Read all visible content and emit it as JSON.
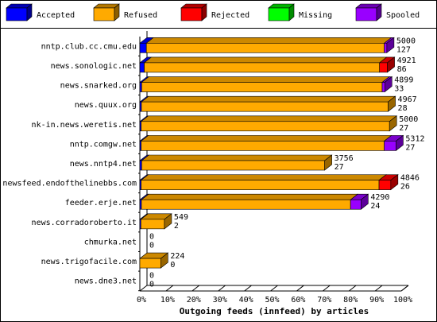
{
  "chart_data": {
    "type": "stacked-bar-3d",
    "title": "Outgoing feeds (innfeed) by articles",
    "categories": [
      "nntp.club.cc.cmu.edu",
      "news.sonologic.net",
      "news.snarked.org",
      "news.quux.org",
      "nk-in.news.weretis.net",
      "nntp.comgw.net",
      "news.nntp4.net",
      "newsfeed.endofthelinebbs.com",
      "feeder.erje.net",
      "news.corradoroberto.it",
      "chmurka.net",
      "news.trigofacile.com",
      "news.dne3.net"
    ],
    "series": [
      {
        "name": "Accepted",
        "color": "#0000ff",
        "values": [
          2.5,
          1.7,
          0.7,
          0.6,
          0.5,
          0.5,
          0.7,
          0.5,
          0.6,
          0.4,
          0,
          0,
          0
        ]
      },
      {
        "name": "Refused",
        "color": "#ffaa00",
        "values": [
          91,
          90,
          92,
          94.4,
          95,
          93,
          70,
          91,
          80,
          9,
          0,
          8,
          0
        ]
      },
      {
        "name": "Rejected",
        "color": "#ff0000",
        "values": [
          0,
          3,
          0,
          0,
          0,
          0,
          0,
          4.5,
          0,
          0,
          0,
          0,
          0
        ]
      },
      {
        "name": "Missing",
        "color": "#00ff00",
        "values": [
          0,
          0,
          0,
          0,
          0,
          0,
          0,
          0,
          0,
          0,
          0,
          0,
          0
        ]
      },
      {
        "name": "Spooled",
        "color": "#9900ff",
        "values": [
          1,
          0,
          1,
          0,
          0,
          4.5,
          0,
          0,
          4,
          0,
          0,
          0,
          0
        ]
      }
    ],
    "offered": [
      5000,
      4921,
      4899,
      4967,
      5000,
      5312,
      3756,
      4846,
      4290,
      549,
      0,
      224,
      0
    ],
    "accepted": [
      127,
      86,
      33,
      28,
      27,
      27,
      27,
      26,
      24,
      2,
      0,
      0,
      0
    ],
    "xlim": [
      0,
      100
    ],
    "xticks": [
      {
        "value": 0,
        "label": "0%"
      },
      {
        "value": 10,
        "label": "10%"
      },
      {
        "value": 20,
        "label": "20%"
      },
      {
        "value": 30,
        "label": "30%"
      },
      {
        "value": 40,
        "label": "40%"
      },
      {
        "value": 50,
        "label": "50%"
      },
      {
        "value": 60,
        "label": "60%"
      },
      {
        "value": 70,
        "label": "70%"
      },
      {
        "value": 80,
        "label": "80%"
      },
      {
        "value": 90,
        "label": "90%"
      },
      {
        "value": 100,
        "label": "100%"
      }
    ]
  }
}
